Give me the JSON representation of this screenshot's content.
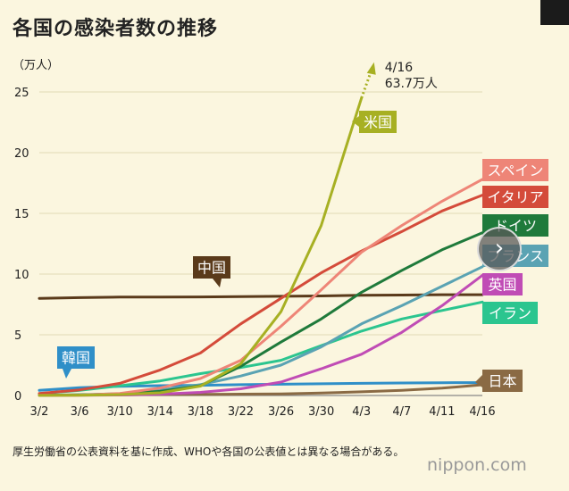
{
  "title": "各国の感染者数の推移",
  "unit_label": "（万人）",
  "footnote": "厚生労働省の公表資料を基に作成、WHOや各国の公表値とは異なる場合がある。",
  "brand": "nippon.com",
  "nav_arrow": "›",
  "chart_data": {
    "type": "line",
    "x": [
      "3/2",
      "3/6",
      "3/10",
      "3/14",
      "3/18",
      "3/22",
      "3/26",
      "3/30",
      "4/3",
      "4/7",
      "4/11",
      "4/16"
    ],
    "ylim": [
      0,
      25
    ],
    "yticks": [
      0,
      5,
      10,
      15,
      20,
      25
    ],
    "ylabel": "（万人）",
    "grid": true,
    "series": [
      {
        "name": "米国",
        "color": "#a7b023",
        "values": [
          0.01,
          0.02,
          0.07,
          0.22,
          0.77,
          2.6,
          6.9,
          14.0,
          24.5,
          null,
          null,
          null
        ]
      },
      {
        "name": "スペイン",
        "color": "#ee8577",
        "values": [
          0.01,
          0.03,
          0.17,
          0.62,
          1.4,
          2.9,
          5.7,
          8.7,
          11.8,
          14.0,
          16.0,
          17.8
        ]
      },
      {
        "name": "イタリア",
        "color": "#d44b3a",
        "values": [
          0.17,
          0.46,
          1.0,
          2.1,
          3.5,
          5.9,
          8.0,
          10.1,
          11.9,
          13.5,
          15.2,
          16.5
        ]
      },
      {
        "name": "ドイツ",
        "color": "#1f7a3b",
        "values": [
          0.02,
          0.05,
          0.13,
          0.34,
          0.8,
          2.4,
          4.4,
          6.3,
          8.5,
          10.3,
          12.0,
          13.4
        ]
      },
      {
        "name": "フランス",
        "color": "#5aa3b3",
        "values": [
          0.02,
          0.06,
          0.15,
          0.45,
          0.9,
          1.6,
          2.5,
          4.0,
          5.9,
          7.4,
          9.0,
          10.6
        ]
      },
      {
        "name": "英国",
        "color": "#c04cb5",
        "values": [
          0.004,
          0.016,
          0.04,
          0.11,
          0.26,
          0.55,
          1.1,
          2.2,
          3.4,
          5.2,
          7.4,
          9.9
        ]
      },
      {
        "name": "イラン",
        "color": "#2bc58f",
        "values": [
          0.15,
          0.42,
          0.8,
          1.2,
          1.8,
          2.3,
          2.9,
          4.1,
          5.3,
          6.3,
          7.0,
          7.7
        ]
      },
      {
        "name": "中国",
        "color": "#5a3a1a",
        "values": [
          8.0,
          8.06,
          8.1,
          8.1,
          8.12,
          8.15,
          8.17,
          8.2,
          8.25,
          8.27,
          8.3,
          8.3
        ]
      },
      {
        "name": "韓国",
        "color": "#2f8fc8",
        "values": [
          0.42,
          0.65,
          0.75,
          0.81,
          0.84,
          0.89,
          0.93,
          0.96,
          1.0,
          1.03,
          1.05,
          1.06
        ]
      },
      {
        "name": "日本",
        "color": "#8a6a44",
        "values": [
          0.02,
          0.04,
          0.05,
          0.08,
          0.09,
          0.11,
          0.13,
          0.2,
          0.3,
          0.42,
          0.6,
          0.88
        ]
      }
    ],
    "annotations": [
      {
        "series": "米国",
        "text_date": "4/16",
        "text_value": "63.7万人"
      }
    ]
  }
}
